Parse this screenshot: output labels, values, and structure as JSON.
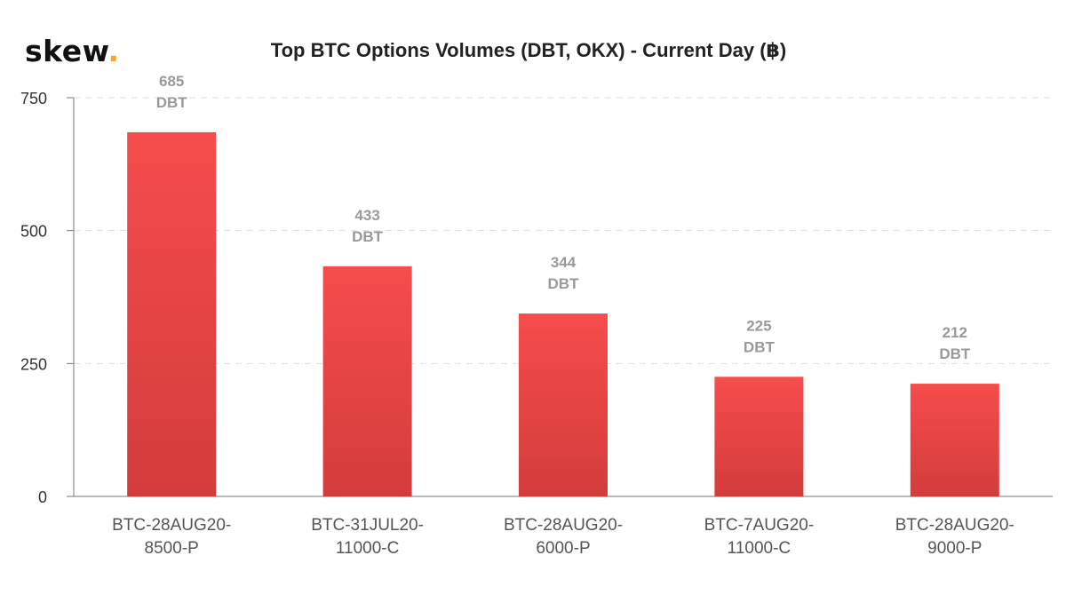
{
  "brand": {
    "name": "skew",
    "dot": ".",
    "dot_color": "#f5a623"
  },
  "chart_data": {
    "type": "bar",
    "title": "Top BTC Options Volumes (DBT, OKX) - Current Day (฿)",
    "xlabel": "",
    "ylabel": "",
    "categories": [
      [
        "BTC-28AUG20-",
        "8500-P"
      ],
      [
        "BTC-31JUL20-",
        "11000-C"
      ],
      [
        "BTC-28AUG20-",
        "6000-P"
      ],
      [
        "BTC-7AUG20-",
        "11000-C"
      ],
      [
        "BTC-28AUG20-",
        "9000-P"
      ]
    ],
    "series": [
      {
        "values": [
          685,
          433,
          344,
          225,
          212
        ],
        "labels": [
          [
            "685",
            "DBT"
          ],
          [
            "433",
            "DBT"
          ],
          [
            "344",
            "DBT"
          ],
          [
            "225",
            "DBT"
          ],
          [
            "212",
            "DBT"
          ]
        ],
        "color_top": "#f64c4c",
        "color_bottom": "#d43c3c"
      }
    ],
    "ylim": [
      0,
      750
    ],
    "yticks": [
      0,
      250,
      500,
      750
    ],
    "grid": true,
    "legend": "none"
  }
}
